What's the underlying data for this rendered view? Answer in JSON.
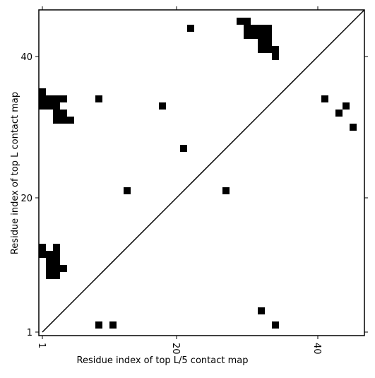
{
  "chart_data": {
    "type": "contact_map",
    "xlabel": "Residue index of top L/5 contact map",
    "ylabel": "Residue index of top L contact map",
    "xlim": [
      0.5,
      46.6
    ],
    "ylim": [
      0.5,
      46.6
    ],
    "xticks": [
      1,
      20,
      40
    ],
    "yticks": [
      1,
      20,
      40
    ],
    "color": "#000000",
    "x": [
      22,
      29,
      30,
      30,
      31,
      32,
      33,
      30,
      31,
      32,
      33,
      32,
      33,
      32,
      33,
      34,
      34,
      1,
      1,
      2,
      3,
      4,
      1,
      2,
      3,
      3,
      4,
      3,
      4,
      5,
      9,
      18,
      21,
      13,
      27,
      41,
      43,
      44,
      45,
      1,
      1,
      3,
      2,
      3,
      2,
      3,
      2,
      3,
      4,
      2,
      3,
      32,
      9,
      11,
      34
    ],
    "y": [
      44,
      45,
      45,
      44,
      44,
      44,
      44,
      43,
      43,
      43,
      43,
      42,
      42,
      41,
      41,
      41,
      40,
      35,
      34,
      34,
      34,
      34,
      33,
      33,
      33,
      32,
      32,
      31,
      31,
      31,
      34,
      33,
      27,
      21,
      21,
      34,
      32,
      33,
      30,
      13,
      12,
      13,
      12,
      12,
      11,
      11,
      10,
      10,
      10,
      9,
      9,
      4,
      2,
      2,
      2
    ]
  }
}
